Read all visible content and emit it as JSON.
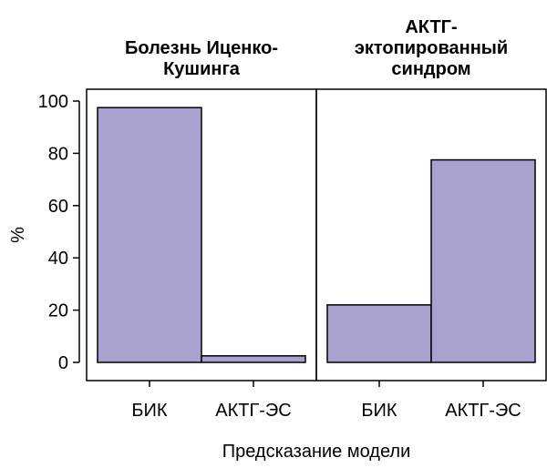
{
  "chart_data": {
    "type": "bar",
    "bar_color": "#a7a2d0",
    "edge_color": "#000000",
    "xlabel": "Предсказание модели",
    "ylabel": "%",
    "ylim": [
      0,
      100
    ],
    "yticks": [
      0,
      20,
      40,
      60,
      80,
      100
    ],
    "categories": [
      "БИК",
      "АКТГ-ЭС"
    ],
    "panels": [
      {
        "title_lines": [
          "Болезнь Иценко-",
          "Кушинга"
        ],
        "values": [
          97.5,
          2.5
        ]
      },
      {
        "title_lines": [
          "АКТГ-",
          "эктопированный",
          "синдром"
        ],
        "values": [
          22,
          77.5
        ]
      }
    ]
  }
}
